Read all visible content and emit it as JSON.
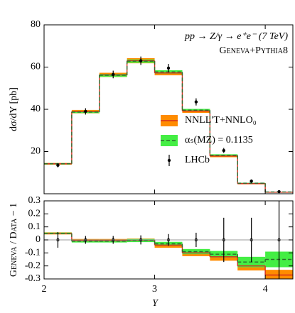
{
  "chart_data": [
    {
      "type": "histogram",
      "ylabel": "dσ/dY [pb]",
      "annotations": [
        "pp → Z/γ → e⁺e⁻ (7 TeV)",
        "Geneva+Pythia8"
      ],
      "bins": [
        2,
        2.25,
        2.5,
        2.75,
        3,
        3.25,
        3.5,
        3.75,
        4,
        4.25
      ],
      "xlim": [
        2,
        4.25
      ],
      "xticks": [
        2,
        3,
        4
      ],
      "ylim": [
        0,
        80
      ],
      "yticks": [
        20,
        40,
        60,
        80
      ],
      "series": [
        {
          "name": "NNLL′T+NNLO₀",
          "color": "#d62c1f",
          "band_color": "#ff8c00",
          "values": [
            14.2,
            38.9,
            56.3,
            63,
            57.2,
            39.2,
            17.9,
            4.8,
            0.73
          ],
          "band": [
            0.4,
            0.8,
            1.0,
            1.2,
            1.1,
            0.9,
            0.6,
            0.3,
            0.1
          ]
        },
        {
          "name": "αₛ(MZ) = 0.1135",
          "color": "#2d6b2d",
          "dashed": true,
          "band_color": "#44ee44",
          "values": [
            14.2,
            38.7,
            56.1,
            62.8,
            57.7,
            39.6,
            18.2,
            5.0,
            0.85
          ],
          "band": [
            0.3,
            0.5,
            0.7,
            0.8,
            0.8,
            0.6,
            0.5,
            0.2,
            0.1
          ]
        },
        {
          "name": "LHCb",
          "color": "#000000",
          "style": "points",
          "x": [
            2.125,
            2.375,
            2.625,
            2.875,
            3.125,
            3.375,
            3.625,
            3.875,
            4.125
          ],
          "values": [
            13.5,
            39,
            56.5,
            63,
            59.5,
            43.5,
            20.5,
            6,
            1
          ],
          "errors": [
            1,
            1.5,
            1.8,
            2,
            2,
            1.7,
            1.2,
            0.8,
            0.3
          ]
        }
      ]
    },
    {
      "type": "histogram",
      "ylabel": "Geneva / Data − 1",
      "xlabel": "Y",
      "bins": [
        2,
        2.25,
        2.5,
        2.75,
        3,
        3.25,
        3.5,
        3.75,
        4,
        4.25
      ],
      "xlim": [
        2,
        4.25
      ],
      "xticks": [
        2,
        3,
        4
      ],
      "ylim": [
        -0.3,
        0.3
      ],
      "yticks": [
        -0.3,
        -0.2,
        -0.1,
        0,
        0.1,
        0.2,
        0.3
      ],
      "series": [
        {
          "color": "#d62c1f",
          "band_color": "#ff8c00",
          "values": [
            0.05,
            -0.005,
            -0.005,
            -0.002,
            -0.04,
            -0.1,
            -0.13,
            -0.2,
            -0.27
          ],
          "band": [
            0.008,
            0.012,
            0.012,
            0.012,
            0.02,
            0.025,
            0.03,
            0.035,
            0.04
          ]
        },
        {
          "color": "#2d6b2d",
          "dashed": true,
          "band_color": "#44ee44",
          "values": [
            0.05,
            -0.01,
            -0.01,
            -0.005,
            -0.03,
            -0.09,
            -0.11,
            -0.17,
            -0.15
          ],
          "band": [
            0.006,
            0.01,
            0.01,
            0.012,
            0.015,
            0.02,
            0.025,
            0.04,
            0.06
          ]
        },
        {
          "color": "#000000",
          "style": "points",
          "x": [
            2.125,
            2.375,
            2.625,
            2.875,
            3.125,
            3.375,
            3.625,
            3.875,
            4.125
          ],
          "values": [
            0,
            0,
            0,
            0,
            0,
            0,
            0,
            0,
            0
          ],
          "errors": [
            0.06,
            0.03,
            0.03,
            0.035,
            0.045,
            0.055,
            0.17,
            0.17,
            0.35
          ]
        }
      ]
    }
  ]
}
